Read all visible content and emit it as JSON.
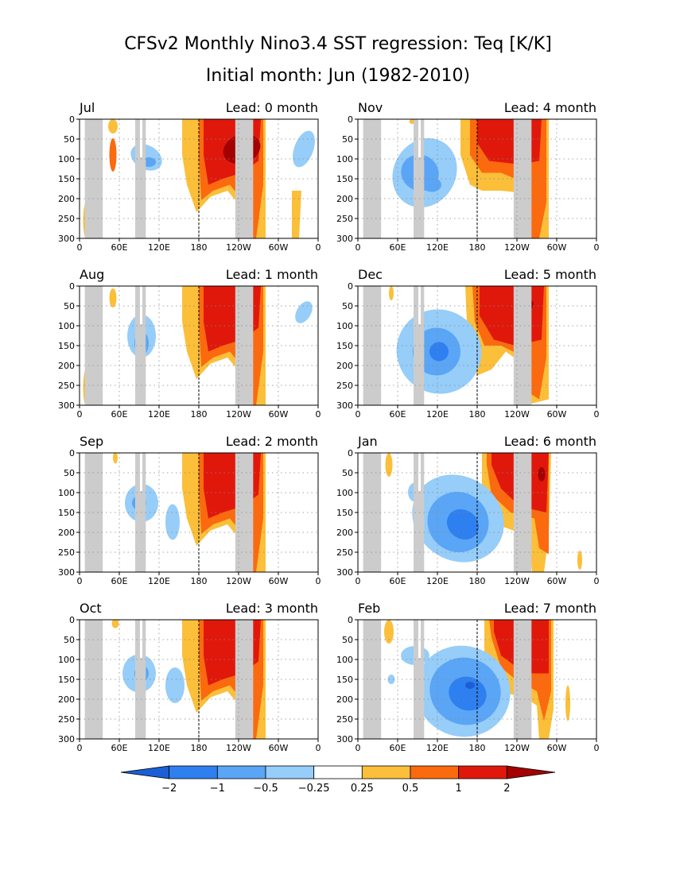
{
  "figure": {
    "title_line1": "CFSv2 Monthly Nino3.4 SST regression: Teq [K/K]",
    "title_line2": "Initial month: Jun (1982-2010)"
  },
  "colors": {
    "land": "#cccccc",
    "levels": [
      "#1a5fd6",
      "#2e7ff0",
      "#5aa5f5",
      "#96cdf9",
      "#ffffff",
      "#fbbf3a",
      "#fb6a0e",
      "#e0180c",
      "#a30000"
    ]
  },
  "chart_data": {
    "type": "heatmap",
    "x_ticks": [
      "0",
      "60E",
      "120E",
      "180",
      "120W",
      "60W",
      "0"
    ],
    "y_ticks": [
      "0",
      "50",
      "100",
      "150",
      "200",
      "250",
      "300"
    ],
    "xlim": [
      0,
      360
    ],
    "ylim": [
      300,
      0
    ],
    "grid": true,
    "colorbar": {
      "labels": [
        "-2",
        "-1",
        "-0.5",
        "-0.25",
        "0.25",
        "0.5",
        "1",
        "2"
      ]
    },
    "panels": [
      {
        "month": "Jul",
        "lead_label": "Lead: 0 month"
      },
      {
        "month": "Nov",
        "lead_label": "Lead: 4 month"
      },
      {
        "month": "Aug",
        "lead_label": "Lead: 1 month"
      },
      {
        "month": "Dec",
        "lead_label": "Lead: 5 month"
      },
      {
        "month": "Sep",
        "lead_label": "Lead: 2 month"
      },
      {
        "month": "Jan",
        "lead_label": "Lead: 6 month"
      },
      {
        "month": "Oct",
        "lead_label": "Lead: 3 month"
      },
      {
        "month": "Feb",
        "lead_label": "Lead: 7 month"
      }
    ]
  }
}
